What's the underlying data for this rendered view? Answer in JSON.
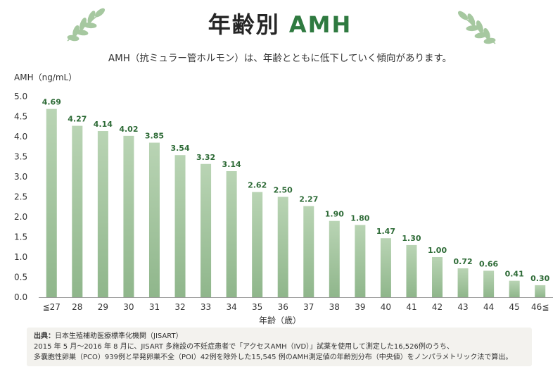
{
  "header": {
    "title_prefix": "年齢別",
    "title_accent": "AMH",
    "subtitle": "AMH（抗ミュラー管ホルモン）は、年齢とともに低下していく傾向があります。"
  },
  "decor": {
    "left_icon": "leaf-branch-icon",
    "right_icon": "leaf-branch-icon",
    "leaf_color": "#a6c8a0"
  },
  "colors": {
    "accent": "#2f7a40",
    "bar_top": "#b9d4b4",
    "bar_bottom": "#8fb68b",
    "label_color": "#2e6b37"
  },
  "chart_data": {
    "type": "bar",
    "ylabel": "AMH（ng/mL）",
    "xlabel": "年齢（歳）",
    "ylim": [
      0,
      5.0
    ],
    "yticks": [
      "0.0",
      "0.5",
      "1.0",
      "1.5",
      "2.0",
      "2.5",
      "3.0",
      "3.5",
      "4.0",
      "4.5",
      "5.0"
    ],
    "categories": [
      "≦27",
      "28",
      "29",
      "30",
      "31",
      "32",
      "33",
      "34",
      "35",
      "36",
      "37",
      "38",
      "39",
      "40",
      "41",
      "42",
      "43",
      "44",
      "45",
      "46≦"
    ],
    "values": [
      4.69,
      4.27,
      4.14,
      4.02,
      3.85,
      3.54,
      3.32,
      3.14,
      2.62,
      2.5,
      2.27,
      1.9,
      1.8,
      1.47,
      1.3,
      1.0,
      0.72,
      0.66,
      0.41,
      0.3
    ],
    "value_labels": [
      "4.69",
      "4.27",
      "4.14",
      "4.02",
      "3.85",
      "3.54",
      "3.32",
      "3.14",
      "2.62",
      "2.50",
      "2.27",
      "1.90",
      "1.80",
      "1.47",
      "1.30",
      "1.00",
      "0.72",
      "0.66",
      "0.41",
      "0.30"
    ],
    "grid": false,
    "legend": "none"
  },
  "notes": {
    "source_label": "出典：",
    "source_text": "日本生殖補助医療標準化機関（JISART）",
    "line2": "2015 年 5 月〜2016 年 8 月に、JISART 多施設の不妊症患者で「アクセスAMH（IVD）」試薬を使用して測定した16,526例のうち、",
    "line3": "多嚢胞性卵巣（PCO）939例と早発卵巣不全（POI）42例を除外した15,545 例のAMH測定値の年齢別分布（中央値）をノンパラメトリック法で算出。"
  }
}
